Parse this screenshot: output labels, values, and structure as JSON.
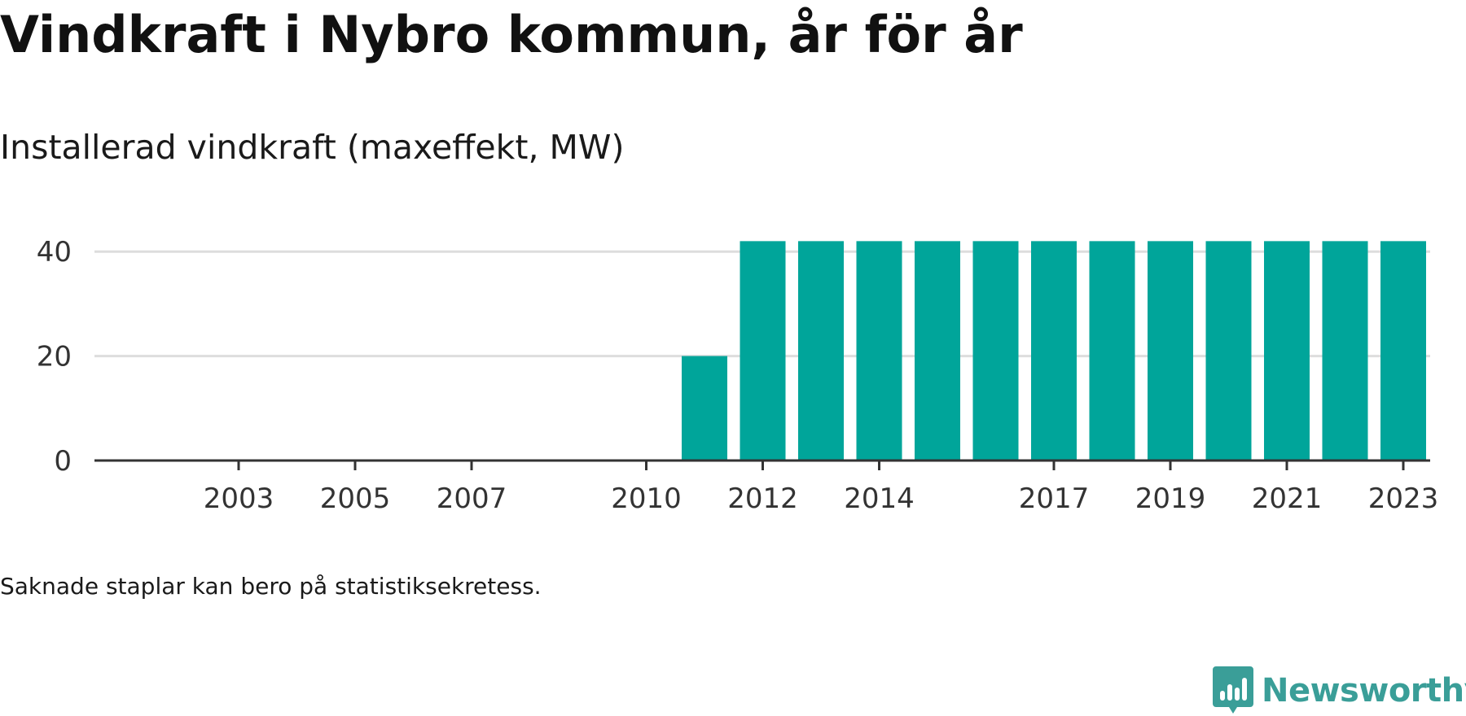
{
  "title": "Vindkraft i Nybro kommun, år för år",
  "subtitle": "Installerad vindkraft (maxeffekt, MW)",
  "note": "Saknade staplar kan bero på statistiksekretess.",
  "brand": {
    "name": "Newsworthy",
    "icon": "newsworthy-logo-icon",
    "color": "#3a9e98"
  },
  "chart_data": {
    "type": "bar",
    "categories": [
      2002,
      2003,
      2004,
      2005,
      2006,
      2007,
      2008,
      2009,
      2010,
      2011,
      2012,
      2013,
      2014,
      2015,
      2016,
      2017,
      2018,
      2019,
      2020,
      2021,
      2022,
      2023
    ],
    "values": [
      null,
      null,
      null,
      null,
      null,
      null,
      null,
      null,
      null,
      20,
      42,
      42,
      42,
      42,
      42,
      42,
      42,
      42,
      42,
      42,
      42,
      42
    ],
    "x_tick_labels": [
      "2003",
      "2005",
      "2007",
      "2010",
      "2012",
      "2014",
      "2017",
      "2019",
      "2021",
      "2023"
    ],
    "y_ticks": [
      0,
      20,
      40
    ],
    "ylim": [
      0,
      42
    ],
    "xlabel": "",
    "ylabel": "",
    "grid": true,
    "bar_color": "#00a59a",
    "grid_color": "#dddddd",
    "axis_color": "#333333"
  }
}
